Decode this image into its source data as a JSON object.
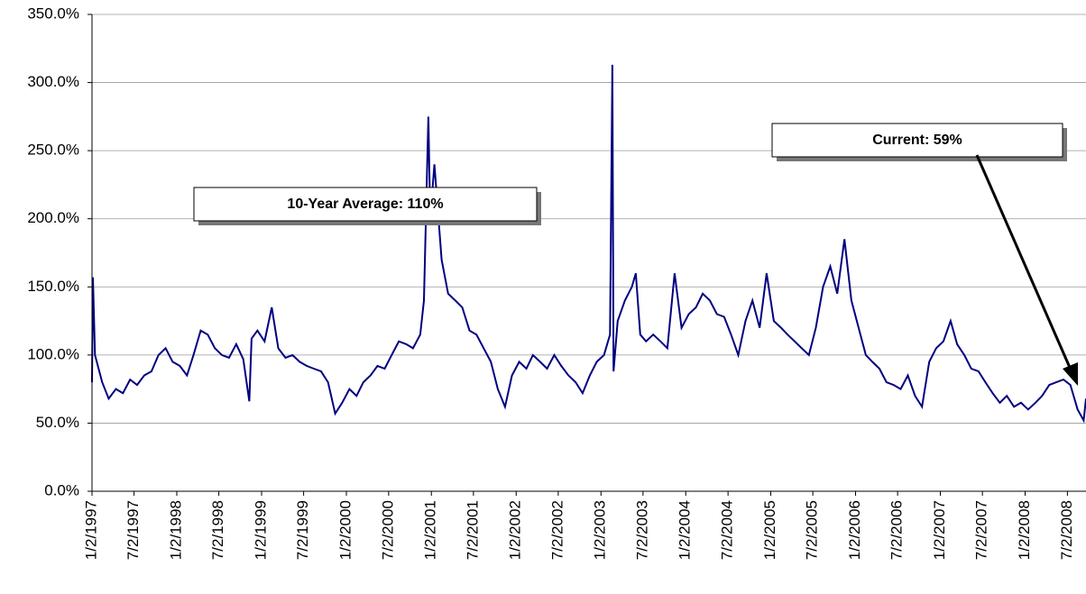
{
  "chart_data": {
    "type": "line",
    "color": "#000080",
    "grid": true,
    "ylim": [
      0,
      350
    ],
    "yticks": [
      {
        "value": 0,
        "label": "0.0%"
      },
      {
        "value": 50,
        "label": "50.0%"
      },
      {
        "value": 100,
        "label": "100.0%"
      },
      {
        "value": 150,
        "label": "150.0%"
      },
      {
        "value": 200,
        "label": "200.0%"
      },
      {
        "value": 250,
        "label": "250.0%"
      },
      {
        "value": 300,
        "label": "300.0%"
      },
      {
        "value": 350,
        "label": "350.0%"
      }
    ],
    "xlim": [
      "1/2/1997",
      "9/20/2008"
    ],
    "xticks": [
      "1/2/1997",
      "7/2/1997",
      "1/2/1998",
      "7/2/1998",
      "1/2/1999",
      "7/2/1999",
      "1/2/2000",
      "7/2/2000",
      "1/2/2001",
      "7/2/2001",
      "1/2/2002",
      "7/2/2002",
      "1/2/2003",
      "7/2/2003",
      "1/2/2004",
      "7/2/2004",
      "1/2/2005",
      "7/2/2005",
      "1/2/2006",
      "7/2/2006",
      "1/2/2007",
      "7/2/2007",
      "1/2/2008",
      "7/2/2008"
    ],
    "annotations": [
      "10-Year Average: 110%",
      "Current: 59%"
    ],
    "x": [
      "1/2/1997",
      "1/6/1997",
      "1/15/1997",
      "2/15/1997",
      "3/15/1997",
      "4/15/1997",
      "5/15/1997",
      "6/15/1997",
      "7/15/1997",
      "8/15/1997",
      "9/15/1997",
      "10/15/1997",
      "11/15/1997",
      "12/15/1997",
      "1/15/1998",
      "2/15/1998",
      "3/15/1998",
      "4/15/1998",
      "5/15/1998",
      "6/15/1998",
      "7/15/1998",
      "8/15/1998",
      "9/15/1998",
      "10/15/1998",
      "11/10/1998",
      "11/20/1998",
      "12/15/1998",
      "1/15/1999",
      "2/15/1999",
      "3/15/1999",
      "4/15/1999",
      "5/15/1999",
      "6/15/1999",
      "7/15/1999",
      "8/15/1999",
      "9/15/1999",
      "10/15/1999",
      "11/15/1999",
      "12/15/1999",
      "1/15/2000",
      "2/15/2000",
      "3/15/2000",
      "4/15/2000",
      "5/15/2000",
      "6/15/2000",
      "7/15/2000",
      "8/15/2000",
      "9/15/2000",
      "10/15/2000",
      "11/15/2000",
      "12/1/2000",
      "12/20/2000",
      "12/28/2000",
      "1/15/2001",
      "2/15/2001",
      "3/15/2001",
      "4/15/2001",
      "5/15/2001",
      "6/15/2001",
      "7/15/2001",
      "8/15/2001",
      "9/15/2001",
      "10/15/2001",
      "11/15/2001",
      "12/15/2001",
      "1/15/2002",
      "2/15/2002",
      "3/15/2002",
      "4/15/2002",
      "5/15/2002",
      "6/15/2002",
      "7/15/2002",
      "8/15/2002",
      "9/15/2002",
      "10/15/2002",
      "11/15/2002",
      "12/15/2002",
      "1/15/2003",
      "2/10/2003",
      "2/20/2003",
      "2/25/2003",
      "3/15/2003",
      "4/15/2003",
      "5/15/2003",
      "6/1/2003",
      "6/20/2003",
      "7/15/2003",
      "8/15/2003",
      "9/15/2003",
      "10/15/2003",
      "11/15/2003",
      "12/15/2003",
      "1/15/2004",
      "2/15/2004",
      "3/15/2004",
      "4/15/2004",
      "5/15/2004",
      "6/15/2004",
      "7/15/2004",
      "8/15/2004",
      "9/15/2004",
      "10/15/2004",
      "11/15/2004",
      "12/15/2004",
      "1/15/2005",
      "2/15/2005",
      "3/15/2005",
      "4/15/2005",
      "5/15/2005",
      "6/15/2005",
      "7/15/2005",
      "8/15/2005",
      "9/15/2005",
      "10/15/2005",
      "11/15/2005",
      "12/15/2005",
      "1/15/2006",
      "2/15/2006",
      "3/15/2006",
      "4/15/2006",
      "5/15/2006",
      "6/15/2006",
      "7/15/2006",
      "8/15/2006",
      "9/15/2006",
      "10/15/2006",
      "11/15/2006",
      "12/15/2006",
      "1/15/2007",
      "2/15/2007",
      "3/15/2007",
      "4/15/2007",
      "5/15/2007",
      "6/15/2007",
      "7/15/2007",
      "8/15/2007",
      "9/15/2007",
      "10/15/2007",
      "11/15/2007",
      "12/15/2007",
      "1/15/2008",
      "2/15/2008",
      "3/15/2008",
      "4/15/2008",
      "5/15/2008",
      "6/15/2008",
      "7/15/2008",
      "8/15/2008",
      "9/10/2008",
      "9/20/2008"
    ],
    "values": [
      80,
      157,
      100,
      80,
      68,
      75,
      72,
      82,
      78,
      85,
      88,
      100,
      105,
      95,
      92,
      85,
      100,
      118,
      115,
      105,
      100,
      98,
      108,
      97,
      66,
      112,
      118,
      110,
      135,
      105,
      98,
      100,
      95,
      92,
      90,
      88,
      80,
      57,
      65,
      75,
      70,
      80,
      85,
      92,
      90,
      100,
      110,
      108,
      105,
      115,
      140,
      275,
      200,
      240,
      170,
      145,
      140,
      135,
      118,
      115,
      105,
      95,
      75,
      62,
      85,
      95,
      90,
      100,
      95,
      90,
      100,
      92,
      85,
      80,
      72,
      85,
      95,
      100,
      115,
      313,
      88,
      125,
      140,
      150,
      160,
      115,
      110,
      115,
      110,
      105,
      160,
      120,
      130,
      135,
      145,
      140,
      130,
      128,
      115,
      100,
      125,
      140,
      120,
      160,
      125,
      120,
      115,
      110,
      105,
      100,
      120,
      150,
      165,
      145,
      185,
      140,
      120,
      100,
      95,
      90,
      80,
      78,
      75,
      85,
      70,
      62,
      95,
      105,
      110,
      125,
      108,
      100,
      90,
      88,
      80,
      72,
      65,
      70,
      62,
      65,
      60,
      65,
      70,
      78,
      80,
      82,
      78,
      60,
      52,
      68
    ]
  }
}
